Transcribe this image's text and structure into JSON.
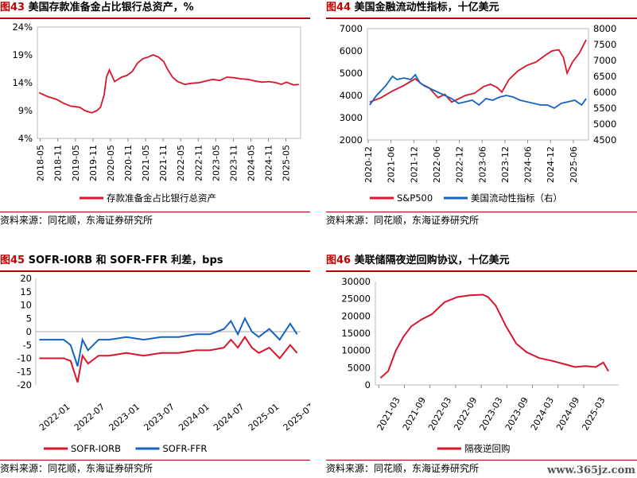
{
  "panels": [
    {
      "fig": "图43",
      "title": "美国存款准备金占比银行总资产，%",
      "source": "资料来源：同花顺，东海证券研究所"
    },
    {
      "fig": "图44",
      "title": "美国金融流动性指标，十亿美元",
      "source": "资料来源：同花顺，东海证券研究所"
    },
    {
      "fig": "图45",
      "title": "SOFR-IORB 和 SOFR-FFR 利差，bps",
      "source": "资料来源：同花顺，东海证券研究所"
    },
    {
      "fig": "图46",
      "title": "美联储隔夜逆回购协议，十亿美元",
      "source": "资料来源：同花顺，东海证券研究所"
    }
  ],
  "watermark": "www.365jz.com",
  "colors": {
    "red": "#d9152b",
    "blue": "#1565c0",
    "accent": "#c00000"
  },
  "chart_data": [
    {
      "type": "line",
      "x_ticks": [
        "2018-05",
        "2018-11",
        "2019-05",
        "2019-11",
        "2020-05",
        "2020-11",
        "2021-05",
        "2021-11",
        "2022-05",
        "2022-11",
        "2023-05",
        "2023-11",
        "2024-05",
        "2024-11",
        "2025-05"
      ],
      "y_ticks": [
        "24%",
        "19%",
        "14%",
        "9%",
        "4%"
      ],
      "ylim": [
        4,
        24
      ],
      "x_range": [
        2018.25,
        2025.75
      ],
      "series": [
        {
          "name": "存款准备金占比银行总资产",
          "color": "#d9152b",
          "x": [
            2018.3,
            2018.55,
            2018.8,
            2019.0,
            2019.2,
            2019.45,
            2019.6,
            2019.8,
            2019.95,
            2020.05,
            2020.15,
            2020.22,
            2020.3,
            2020.45,
            2020.65,
            2020.8,
            2020.95,
            2021.1,
            2021.25,
            2021.4,
            2021.55,
            2021.7,
            2021.85,
            2021.95,
            2022.1,
            2022.25,
            2022.45,
            2022.65,
            2022.85,
            2023.05,
            2023.25,
            2023.45,
            2023.65,
            2023.85,
            2024.05,
            2024.25,
            2024.45,
            2024.65,
            2024.85,
            2025.05,
            2025.2,
            2025.35,
            2025.55,
            2025.7
          ],
          "y": [
            12.2,
            11.5,
            11.0,
            10.3,
            9.8,
            9.6,
            9.0,
            8.6,
            9.0,
            9.6,
            11.8,
            15.0,
            16.3,
            14.2,
            15.0,
            15.3,
            16.0,
            17.5,
            18.3,
            18.6,
            19.0,
            18.6,
            17.8,
            16.5,
            15.0,
            14.2,
            13.7,
            13.9,
            14.0,
            14.3,
            14.6,
            14.4,
            15.0,
            14.9,
            14.7,
            14.6,
            14.3,
            14.1,
            14.2,
            14.0,
            13.7,
            14.1,
            13.6,
            13.7
          ]
        }
      ]
    },
    {
      "type": "line",
      "x_ticks": [
        "2020-12",
        "2021-06",
        "2021-12",
        "2022-06",
        "2022-12",
        "2023-06",
        "2023-12",
        "2024-06",
        "2024-12",
        "2025-06"
      ],
      "y_left_ticks": [
        "7000",
        "6000",
        "5000",
        "4000",
        "3000",
        "2000"
      ],
      "y_right_ticks": [
        "8000",
        "7500",
        "7000",
        "6500",
        "6000",
        "5500",
        "5000",
        "4500"
      ],
      "ylim_left": [
        2000,
        7000
      ],
      "ylim_right": [
        4500,
        8000
      ],
      "x_range": [
        2020.9,
        2025.75
      ],
      "series": [
        {
          "name": "S&P500",
          "axis": "left",
          "color": "#d9152b",
          "x": [
            2020.95,
            2021.2,
            2021.45,
            2021.7,
            2021.95,
            2022.1,
            2022.25,
            2022.45,
            2022.6,
            2022.75,
            2022.9,
            2023.05,
            2023.25,
            2023.45,
            2023.6,
            2023.75,
            2023.85,
            2024.0,
            2024.2,
            2024.4,
            2024.6,
            2024.8,
            2024.95,
            2025.1,
            2025.2,
            2025.28,
            2025.4,
            2025.55,
            2025.7
          ],
          "y": [
            3700,
            3900,
            4200,
            4450,
            4750,
            4500,
            4350,
            3900,
            4050,
            3700,
            3850,
            4000,
            4100,
            4400,
            4500,
            4350,
            4150,
            4700,
            5100,
            5350,
            5500,
            5800,
            6000,
            6050,
            5700,
            5000,
            5500,
            5900,
            6500
          ]
        },
        {
          "name": "美国流动性指标（右）",
          "axis": "right",
          "color": "#1565c0",
          "x": [
            2020.95,
            2021.1,
            2021.3,
            2021.45,
            2021.55,
            2021.7,
            2021.85,
            2021.95,
            2022.05,
            2022.15,
            2022.3,
            2022.45,
            2022.6,
            2022.75,
            2022.9,
            2023.05,
            2023.2,
            2023.35,
            2023.5,
            2023.65,
            2023.8,
            2023.95,
            2024.1,
            2024.25,
            2024.4,
            2024.55,
            2024.7,
            2024.85,
            2025.0,
            2025.15,
            2025.3,
            2025.45,
            2025.6,
            2025.7
          ],
          "y": [
            5600,
            5900,
            6200,
            6500,
            6400,
            6450,
            6400,
            6550,
            6300,
            6200,
            6100,
            6000,
            5900,
            5800,
            5650,
            5700,
            5750,
            5600,
            5800,
            5750,
            5850,
            5900,
            5850,
            5750,
            5700,
            5650,
            5600,
            5600,
            5500,
            5650,
            5700,
            5750,
            5600,
            5800
          ]
        }
      ]
    },
    {
      "type": "line",
      "x_ticks": [
        "2022-01",
        "2022-07",
        "2023-01",
        "2023-07",
        "2024-01",
        "2024-07",
        "2025-01",
        "2025-07"
      ],
      "y_ticks": [
        "20",
        "15",
        "10",
        "5",
        "0",
        "-5",
        "-10",
        "-15",
        "-20"
      ],
      "ylim": [
        -20,
        20
      ],
      "x_range": [
        2021.95,
        2025.75
      ],
      "series": [
        {
          "name": "SOFR-IORB",
          "color": "#d9152b",
          "x": [
            2022.0,
            2022.2,
            2022.35,
            2022.45,
            2022.55,
            2022.62,
            2022.7,
            2022.85,
            2023.0,
            2023.25,
            2023.5,
            2023.75,
            2024.0,
            2024.25,
            2024.45,
            2024.65,
            2024.75,
            2024.85,
            2024.95,
            2025.05,
            2025.15,
            2025.3,
            2025.45,
            2025.6,
            2025.7
          ],
          "y": [
            -10,
            -10,
            -10,
            -11,
            -19,
            -9,
            -12,
            -9,
            -9,
            -8,
            -9,
            -8,
            -8,
            -7,
            -7,
            -6,
            -3,
            -6,
            -2,
            -6,
            -8,
            -6,
            -10,
            -5,
            -8
          ]
        },
        {
          "name": "SOFR-FFR",
          "color": "#1565c0",
          "x": [
            2022.0,
            2022.2,
            2022.35,
            2022.45,
            2022.55,
            2022.62,
            2022.7,
            2022.85,
            2023.0,
            2023.25,
            2023.5,
            2023.75,
            2024.0,
            2024.25,
            2024.45,
            2024.65,
            2024.75,
            2024.85,
            2024.95,
            2025.05,
            2025.15,
            2025.3,
            2025.45,
            2025.6,
            2025.7
          ],
          "y": [
            -3,
            -3,
            -3,
            -5,
            -13,
            -3,
            -7,
            -3,
            -3,
            -2,
            -3,
            -2,
            -2,
            -1,
            -1,
            1,
            4,
            -1,
            5,
            0,
            -2,
            1,
            -3,
            3,
            -1
          ]
        }
      ]
    },
    {
      "type": "line",
      "x_ticks": [
        "2021-03",
        "2021-09",
        "2022-03",
        "2022-09",
        "2023-03",
        "2023-09",
        "2024-03",
        "2024-09",
        "2025-03"
      ],
      "y_ticks": [
        "30000",
        "25000",
        "20000",
        "15000",
        "10000",
        "5000",
        "0"
      ],
      "ylim": [
        0,
        30000
      ],
      "x_range": [
        2021.1,
        2025.85
      ],
      "series": [
        {
          "name": "隔夜逆回购",
          "color": "#d9152b",
          "x": [
            2021.2,
            2021.35,
            2021.5,
            2021.65,
            2021.8,
            2022.0,
            2022.2,
            2022.45,
            2022.7,
            2022.95,
            2023.2,
            2023.3,
            2023.45,
            2023.65,
            2023.85,
            2024.05,
            2024.3,
            2024.55,
            2024.8,
            2025.0,
            2025.2,
            2025.4,
            2025.55,
            2025.65
          ],
          "y": [
            2000,
            4000,
            10000,
            14000,
            17000,
            19000,
            20500,
            24000,
            25500,
            26000,
            26200,
            25500,
            23000,
            17000,
            12000,
            9500,
            7800,
            7000,
            6000,
            5200,
            5500,
            5200,
            6500,
            4000
          ]
        }
      ]
    }
  ]
}
